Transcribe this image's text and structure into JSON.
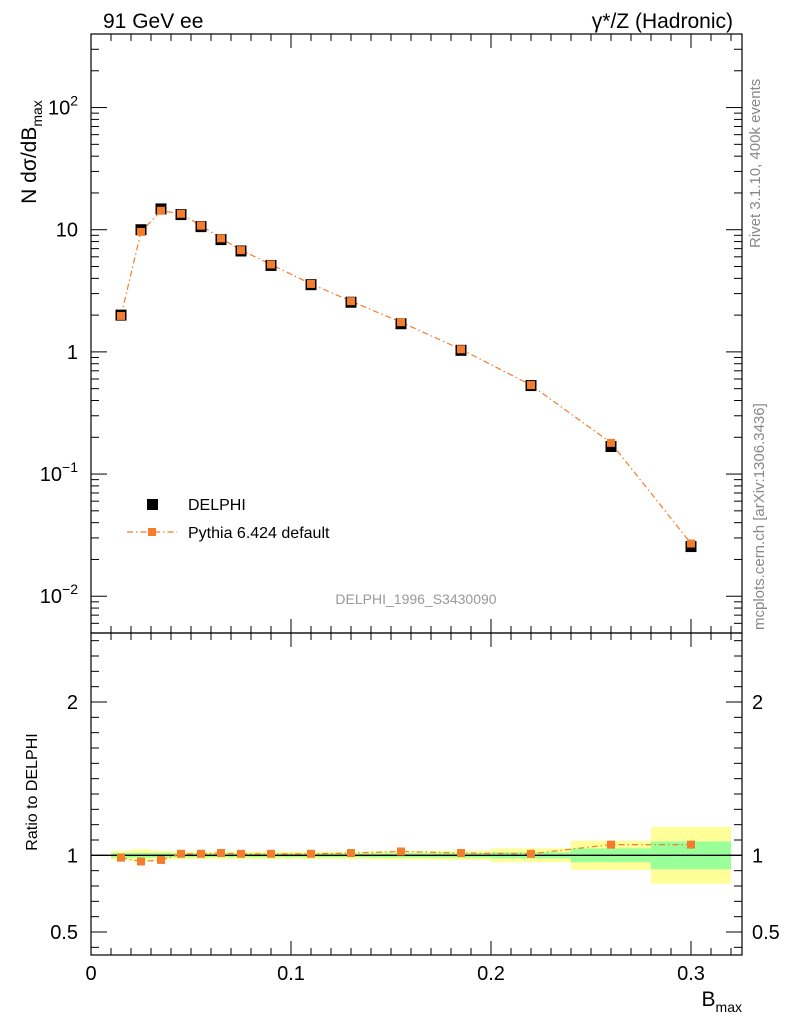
{
  "header": {
    "left": "91 GeV ee",
    "right": "γ*/Z (Hadronic)"
  },
  "side_labels": {
    "rivet": "Rivet 3.1.10,  400k events",
    "mcplots": "mcplots.cern.ch [arXiv:1306.3436]"
  },
  "chart_data": [
    {
      "type": "scatter",
      "title": "",
      "ylabel_main": "N dσ/dB",
      "ylabel_sub": "max",
      "xlabel_main": "B",
      "xlabel_sub": "max",
      "yscale": "log",
      "xlim": [
        0,
        0.3255
      ],
      "ylim": [
        0.005,
        400
      ],
      "x_ticks": [
        "0",
        "0.1",
        "0.2",
        "0.3"
      ],
      "y_ticks": [
        {
          "value": 0.01,
          "base": "10",
          "exp": "−2"
        },
        {
          "value": 0.1,
          "base": "10",
          "exp": "−1"
        },
        {
          "value": 1,
          "base": "1",
          "exp": ""
        },
        {
          "value": 10,
          "base": "10",
          "exp": ""
        },
        {
          "value": 100,
          "base": "10",
          "exp": "2"
        }
      ],
      "watermark": "DELPHI_1996_S3430090",
      "legend_position": "bottom-left",
      "series": [
        {
          "name": "DELPHI",
          "color": "#000000",
          "marker": "square",
          "x": [
            0.015,
            0.025,
            0.035,
            0.045,
            0.055,
            0.065,
            0.075,
            0.09,
            0.11,
            0.13,
            0.155,
            0.185,
            0.22,
            0.26,
            0.3
          ],
          "y": [
            2.0,
            10.0,
            14.8,
            13.3,
            10.6,
            8.3,
            6.7,
            5.1,
            3.55,
            2.55,
            1.7,
            1.03,
            0.53,
            0.168,
            0.0255
          ]
        },
        {
          "name": "Pythia 6.424 default",
          "color": "#f57c2c",
          "marker": "square",
          "line": "dash-dot",
          "x": [
            0.015,
            0.025,
            0.035,
            0.045,
            0.055,
            0.065,
            0.075,
            0.09,
            0.11,
            0.13,
            0.155,
            0.185,
            0.22,
            0.26,
            0.3
          ],
          "y": [
            1.97,
            9.6,
            14.3,
            13.5,
            10.8,
            8.5,
            6.8,
            5.2,
            3.6,
            2.6,
            1.75,
            1.05,
            0.535,
            0.18,
            0.027
          ]
        }
      ]
    },
    {
      "type": "scatter",
      "title": "",
      "ylabel": "Ratio to DELPHI",
      "ylim": [
        0.35,
        2.45
      ],
      "y_ticks": [
        "0.5",
        "1",
        "2"
      ],
      "y_tick_values": [
        0.5,
        1,
        2
      ],
      "reference_line": 1,
      "bands": [
        {
          "x0": 0.01,
          "x1": 0.02,
          "inner": [
            0.985,
            1.015
          ],
          "outer": [
            0.97,
            1.03
          ]
        },
        {
          "x0": 0.02,
          "x1": 0.03,
          "inner": [
            0.985,
            1.015
          ],
          "outer": [
            0.96,
            1.04
          ]
        },
        {
          "x0": 0.03,
          "x1": 0.04,
          "inner": [
            0.985,
            1.015
          ],
          "outer": [
            0.97,
            1.03
          ]
        },
        {
          "x0": 0.04,
          "x1": 0.05,
          "inner": [
            0.988,
            1.012
          ],
          "outer": [
            0.975,
            1.025
          ]
        },
        {
          "x0": 0.05,
          "x1": 0.06,
          "inner": [
            0.988,
            1.012
          ],
          "outer": [
            0.975,
            1.025
          ]
        },
        {
          "x0": 0.06,
          "x1": 0.07,
          "inner": [
            0.988,
            1.012
          ],
          "outer": [
            0.975,
            1.025
          ]
        },
        {
          "x0": 0.07,
          "x1": 0.08,
          "inner": [
            0.988,
            1.012
          ],
          "outer": [
            0.975,
            1.025
          ]
        },
        {
          "x0": 0.08,
          "x1": 0.1,
          "inner": [
            0.988,
            1.012
          ],
          "outer": [
            0.975,
            1.025
          ]
        },
        {
          "x0": 0.1,
          "x1": 0.12,
          "inner": [
            0.988,
            1.012
          ],
          "outer": [
            0.975,
            1.025
          ]
        },
        {
          "x0": 0.12,
          "x1": 0.14,
          "inner": [
            0.988,
            1.012
          ],
          "outer": [
            0.975,
            1.025
          ]
        },
        {
          "x0": 0.14,
          "x1": 0.17,
          "inner": [
            0.986,
            1.014
          ],
          "outer": [
            0.972,
            1.028
          ]
        },
        {
          "x0": 0.17,
          "x1": 0.2,
          "inner": [
            0.985,
            1.015
          ],
          "outer": [
            0.97,
            1.03
          ]
        },
        {
          "x0": 0.2,
          "x1": 0.24,
          "inner": [
            0.98,
            1.02
          ],
          "outer": [
            0.955,
            1.045
          ]
        },
        {
          "x0": 0.24,
          "x1": 0.28,
          "inner": [
            0.955,
            1.045
          ],
          "outer": [
            0.905,
            1.095
          ]
        },
        {
          "x0": 0.28,
          "x1": 0.32,
          "inner": [
            0.91,
            1.09
          ],
          "outer": [
            0.815,
            1.185
          ]
        }
      ],
      "series": [
        {
          "name": "Pythia 6.424 default",
          "color": "#f57c2c",
          "marker": "square",
          "line": "dash-dot",
          "x": [
            0.015,
            0.025,
            0.035,
            0.045,
            0.055,
            0.065,
            0.075,
            0.09,
            0.11,
            0.13,
            0.155,
            0.185,
            0.22,
            0.26,
            0.3
          ],
          "y": [
            0.985,
            0.96,
            0.97,
            1.01,
            1.01,
            1.015,
            1.01,
            1.01,
            1.01,
            1.015,
            1.025,
            1.015,
            1.01,
            1.07,
            1.07
          ],
          "yerr": [
            0,
            0,
            0,
            0,
            0,
            0,
            0,
            0,
            0,
            0,
            0,
            0,
            0,
            0,
            0.025
          ]
        }
      ]
    }
  ],
  "colors": {
    "band_inner": "#99ff99",
    "band_outer": "#ffff99",
    "watermark": "#999999",
    "side_text": "#888888"
  }
}
